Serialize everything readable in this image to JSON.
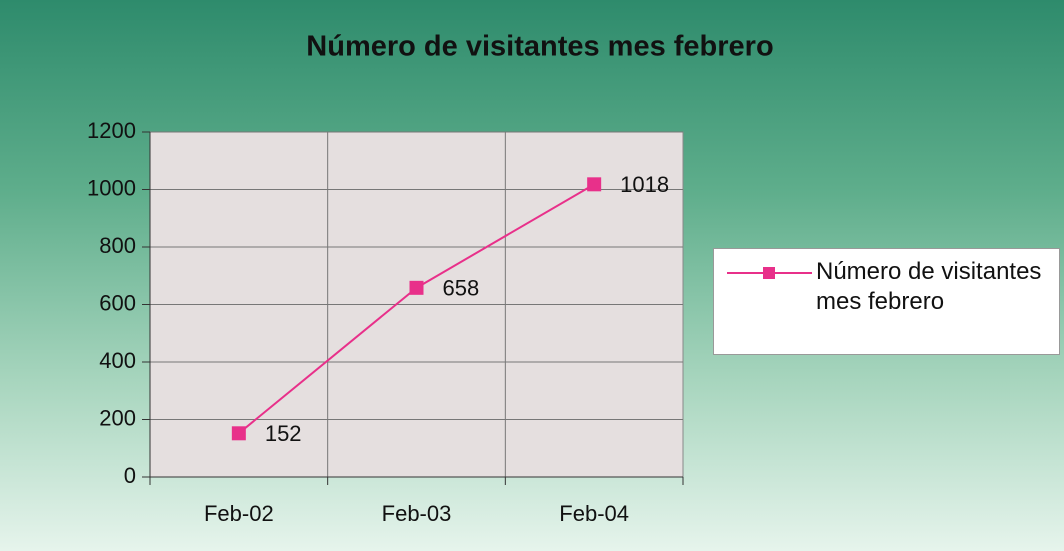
{
  "chart_data": {
    "type": "line",
    "title": "Número de visitantes mes febrero",
    "categories": [
      "Feb-02",
      "Feb-03",
      "Feb-04"
    ],
    "series": [
      {
        "name": "Número de visitantes mes febrero",
        "color": "#e8308a",
        "values": [
          152,
          658,
          1018
        ]
      }
    ],
    "ylim": [
      0,
      1200
    ],
    "yticks": [
      0,
      200,
      400,
      600,
      800,
      1000,
      1200
    ],
    "grid": true,
    "legend": "right"
  }
}
